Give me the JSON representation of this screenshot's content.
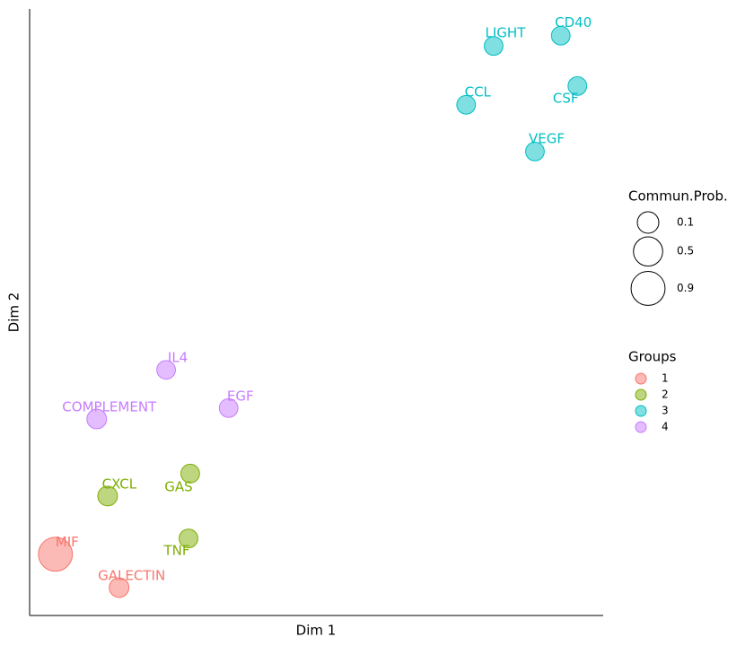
{
  "chart_data": {
    "type": "scatter",
    "xlabel": "Dim 1",
    "ylabel": "Dim 2",
    "xlim": [
      0,
      100
    ],
    "ylim": [
      0,
      100
    ],
    "size_title": "Commun.Prob.",
    "size_ticks": [
      0.1,
      0.5,
      0.9
    ],
    "legend_title": "Groups",
    "legend_position": "right",
    "series": [
      {
        "name": "1",
        "color": "#F8766D",
        "labels": [
          "MIF",
          "GALECTIN"
        ],
        "x": [
          4.5,
          15.6
        ],
        "values": [
          10.1,
          4.6
        ],
        "sizes": [
          0.9,
          0.05
        ]
      },
      {
        "name": "2",
        "color": "#7CAE00",
        "labels": [
          "CXCL",
          "GAS",
          "TNF"
        ],
        "x": [
          13.6,
          28.0,
          27.7
        ],
        "values": [
          19.7,
          23.4,
          12.7
        ],
        "sizes": [
          0.05,
          0.03,
          0.03
        ]
      },
      {
        "name": "3",
        "color": "#00BFC4",
        "labels": [
          "LIGHT",
          "CD40",
          "CSF",
          "CCL",
          "VEGF"
        ],
        "x": [
          80.9,
          92.6,
          95.5,
          76.1,
          88.1
        ],
        "values": [
          93.9,
          95.6,
          87.3,
          84.2,
          76.5
        ],
        "sizes": [
          0.03,
          0.03,
          0.03,
          0.03,
          0.03
        ]
      },
      {
        "name": "4",
        "color": "#C77CFF",
        "labels": [
          "IL4",
          "EGF",
          "COMPLEMENT"
        ],
        "x": [
          23.8,
          34.7,
          11.7
        ],
        "values": [
          40.5,
          34.2,
          32.4
        ],
        "sizes": [
          0.03,
          0.03,
          0.05
        ]
      }
    ]
  }
}
